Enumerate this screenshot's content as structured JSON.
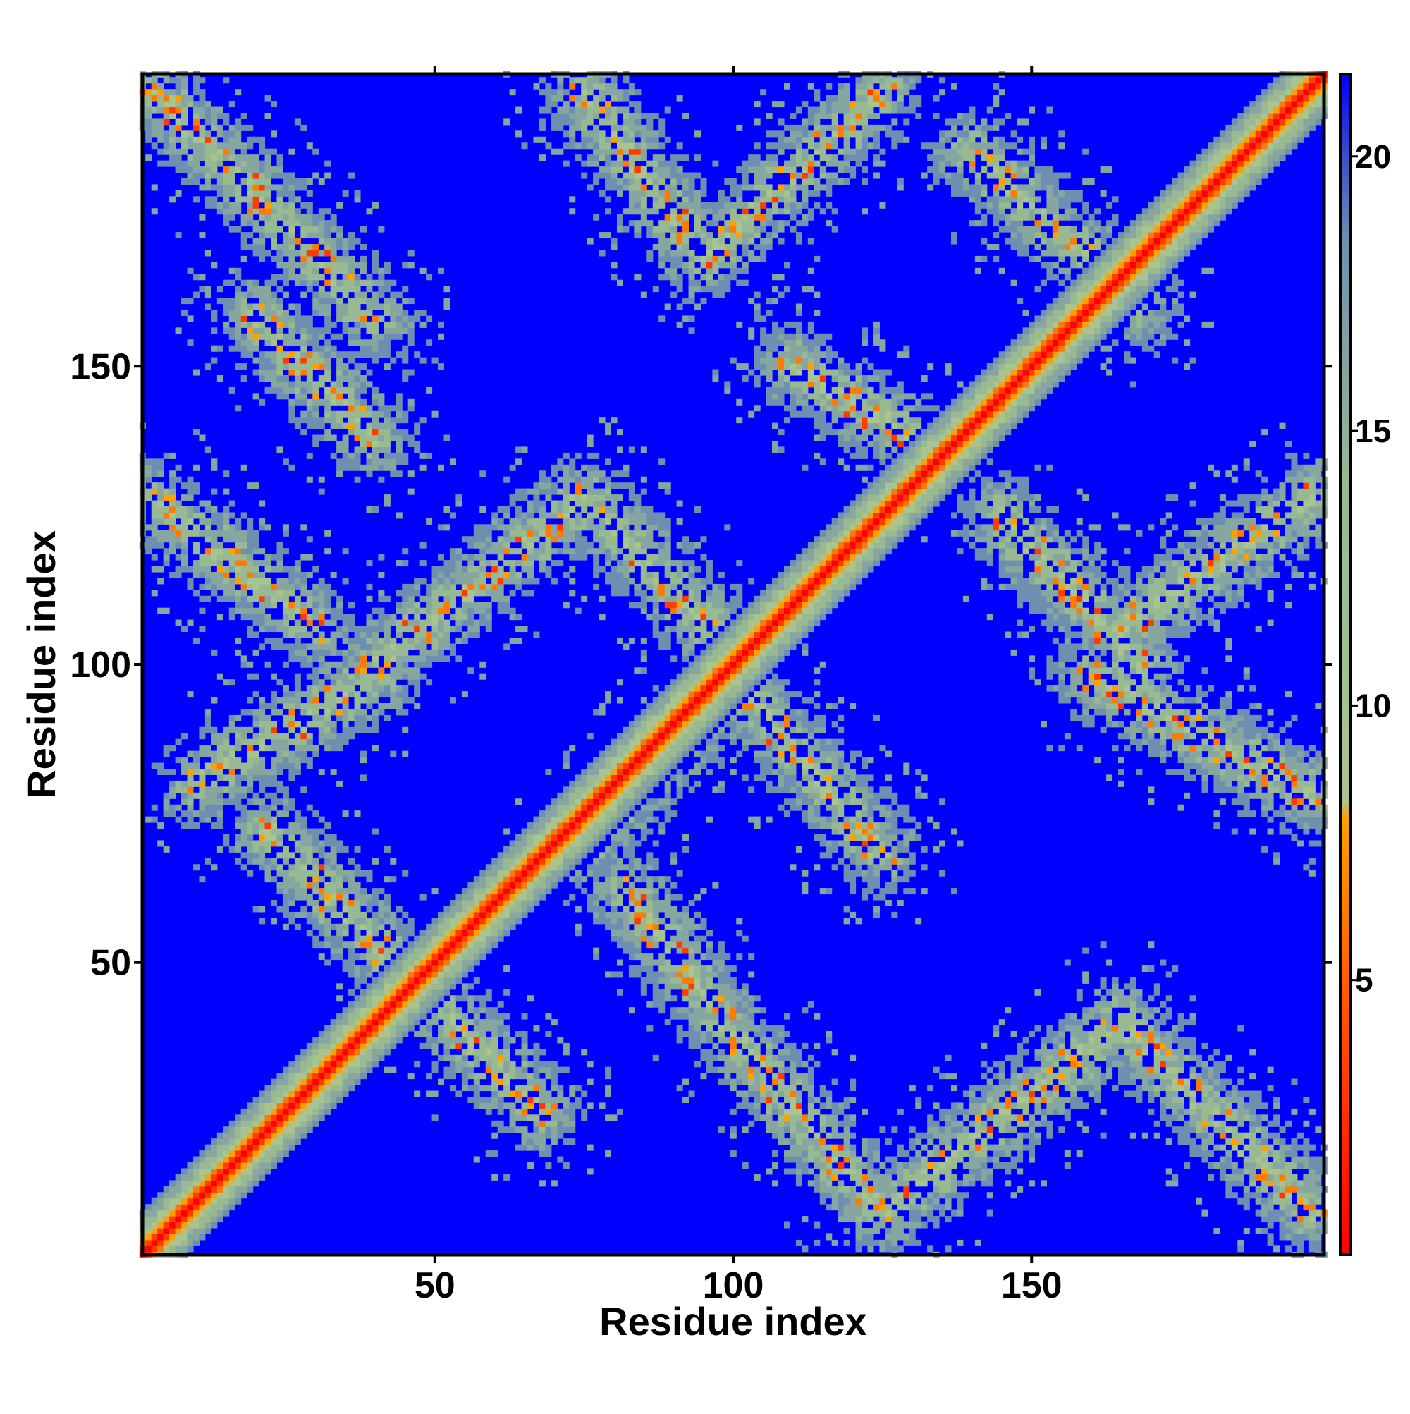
{
  "chart_data": {
    "type": "heatmap",
    "title": "",
    "xlabel": "Residue index",
    "ylabel": "Residue index",
    "xlim": [
      1,
      199
    ],
    "ylim": [
      1,
      199
    ],
    "x_ticks": [
      50,
      100,
      150
    ],
    "y_ticks": [
      50,
      100,
      150
    ],
    "grid": false,
    "colorbar": {
      "range": [
        0,
        21.5
      ],
      "ticks": [
        5,
        10,
        15,
        20
      ],
      "placement": "right",
      "colors": {
        "near": "#ff0000",
        "orange": "#ff8c00",
        "mid": "#9bbf8f",
        "far": "#6c8fb0",
        "background": "#0000ff"
      }
    },
    "description_of_structure": "",
    "main_diagonal": {
      "x_start": 1,
      "y_start": 1,
      "x_end": 199,
      "y_end": 199,
      "value": 0
    },
    "contact_bands": [
      {
        "x_start": 2,
        "y_start": 197,
        "x_end": 40,
        "y_end": 158,
        "value": 9
      },
      {
        "x_start": 20,
        "y_start": 158,
        "x_end": 40,
        "y_end": 138,
        "value": 9
      },
      {
        "x_start": 2,
        "y_start": 128,
        "x_end": 30,
        "y_end": 106,
        "value": 9
      },
      {
        "x_start": 40,
        "y_start": 100,
        "x_end": 75,
        "y_end": 128,
        "value": 9
      },
      {
        "x_start": 75,
        "y_start": 128,
        "x_end": 96,
        "y_end": 106,
        "value": 9
      },
      {
        "x_start": 10,
        "y_start": 80,
        "x_end": 40,
        "y_end": 98,
        "value": 9
      },
      {
        "x_start": 22,
        "y_start": 72,
        "x_end": 45,
        "y_end": 48,
        "value": 9
      },
      {
        "x_start": 45,
        "y_start": 48,
        "x_end": 68,
        "y_end": 25,
        "value": 9
      },
      {
        "x_start": 75,
        "y_start": 196,
        "x_end": 95,
        "y_end": 168,
        "value": 8
      },
      {
        "x_start": 95,
        "y_start": 168,
        "x_end": 125,
        "y_end": 196,
        "value": 9
      },
      {
        "x_start": 110,
        "y_start": 150,
        "x_end": 135,
        "y_end": 135,
        "value": 10
      },
      {
        "x_start": 100,
        "y_start": 98,
        "x_end": 125,
        "y_end": 68,
        "value": 9
      },
      {
        "x_start": 100,
        "y_start": 98,
        "x_end": 75,
        "y_end": 70,
        "value": 10
      },
      {
        "x_start": 82,
        "y_start": 62,
        "x_end": 100,
        "y_end": 38,
        "value": 10
      },
      {
        "x_start": 100,
        "y_start": 38,
        "x_end": 125,
        "y_end": 8,
        "value": 9
      },
      {
        "x_start": 125,
        "y_start": 8,
        "x_end": 165,
        "y_end": 40,
        "value": 9
      },
      {
        "x_start": 165,
        "y_start": 40,
        "x_end": 197,
        "y_end": 8,
        "value": 9
      },
      {
        "x_start": 160,
        "y_start": 98,
        "x_end": 197,
        "y_end": 78,
        "value": 9
      },
      {
        "x_start": 165,
        "y_start": 106,
        "x_end": 197,
        "y_end": 128,
        "value": 10
      },
      {
        "x_start": 140,
        "y_start": 186,
        "x_end": 168,
        "y_end": 160,
        "value": 10
      },
      {
        "x_start": 145,
        "y_start": 125,
        "x_end": 168,
        "y_end": 100,
        "value": 11
      }
    ]
  }
}
